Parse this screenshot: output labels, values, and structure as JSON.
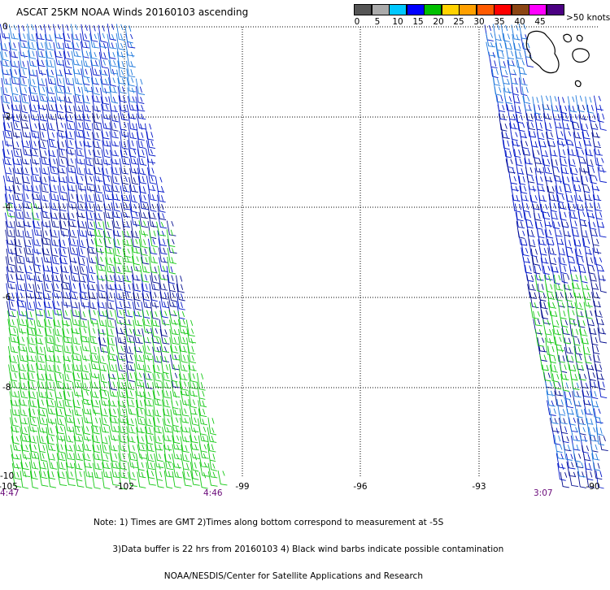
{
  "title": "ASCAT 25KM NOAA Winds 20160103 ascending",
  "color_scale": {
    "swatches": [
      "#555555",
      "#aaaaaa",
      "#00c8ff",
      "#0000ff",
      "#00c000",
      "#ffd200",
      "#ffa000",
      "#ff5a00",
      "#ff0000",
      "#8b4513",
      "#ff00ff",
      "#4b0082"
    ],
    "labels": [
      "0",
      "5",
      "10",
      "15",
      "20",
      "25",
      "30",
      "35",
      "40",
      "45",
      ">50 knots"
    ]
  },
  "map": {
    "y_labels": [
      "0",
      "-2",
      "-4",
      "-6",
      "-8",
      "-10"
    ],
    "x_labels": [
      "-105",
      "-102",
      "-99",
      "-96",
      "-93",
      "-90"
    ],
    "time_labels": [
      "4:47",
      "4:46",
      "3:07"
    ]
  },
  "notes": [
    "Note: 1) Times are GMT 2)Times along bottom correspond to measurement at -5S",
    "       3)Data buffer is 22 hrs from 20160103 4) Black wind barbs indicate possible contamination",
    "                          NOAA/NESDIS/Center for Satellite Applications and Research"
  ]
}
